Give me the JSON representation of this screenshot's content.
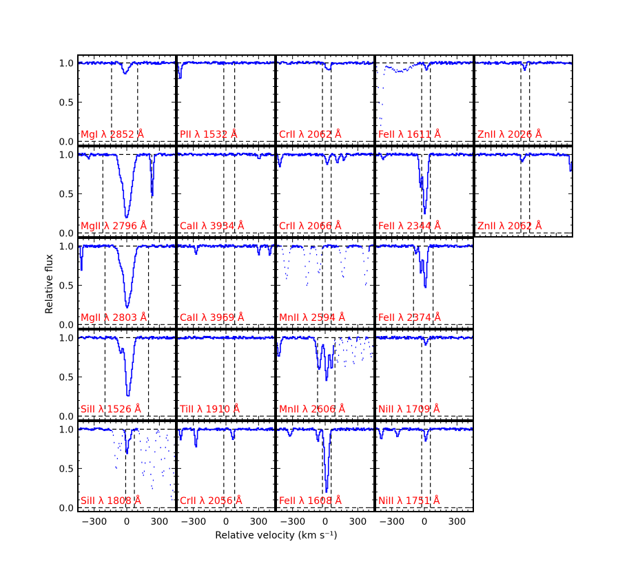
{
  "chart_data": {
    "type": "line",
    "title": "",
    "xlabel": "Relative velocity (km s⁻¹)",
    "ylabel": "Relative flux",
    "xlim": [
      -450,
      450
    ],
    "ylim": [
      -0.05,
      1.1
    ],
    "x_ticks": [
      -300,
      0,
      300
    ],
    "x_tick_labels": [
      "−300",
      "0",
      "300"
    ],
    "y_ticks": [
      0.0,
      0.5,
      1.0
    ],
    "y_tick_labels": [
      "0.0",
      "0.5",
      "1.0"
    ],
    "grid": false,
    "line_color": "#0000ff",
    "label_color": "#ff0000",
    "panels": [
      {
        "label": "MgI λ 2852 Å",
        "row": 0,
        "col": 0,
        "vlines": [
          -140,
          100
        ],
        "features": [
          [
            -10,
            0.12,
            22
          ],
          [
            -35,
            0.05,
            10
          ]
        ],
        "dotted": []
      },
      {
        "label": "PII λ 1532 Å",
        "row": 0,
        "col": 1,
        "vlines": [
          -20,
          80
        ],
        "features": [
          [
            -425,
            0.22,
            9
          ]
        ],
        "dotted": []
      },
      {
        "label": "CrII λ 2062 Å",
        "row": 0,
        "col": 2,
        "vlines": [
          -25,
          55
        ],
        "features": [
          [
            15,
            0.08,
            14
          ],
          [
            40,
            0.06,
            8
          ]
        ],
        "dotted": []
      },
      {
        "label": "FeII λ 1611 Å",
        "row": 0,
        "col": 3,
        "vlines": [
          -25,
          55
        ],
        "features": [
          [
            15,
            0.09,
            12
          ]
        ],
        "dotted": [
          [
            -405,
            0.8,
            16
          ],
          [
            -280,
            0.06,
            60
          ],
          [
            -190,
            0.08,
            70
          ]
        ]
      },
      {
        "label": "ZnII λ 2026 Å",
        "row": 0,
        "col": 4,
        "vlines": [
          -25,
          55
        ],
        "features": [
          [
            5,
            0.08,
            12
          ]
        ],
        "dotted": []
      },
      {
        "label": "MgII λ 2796 Å",
        "row": 1,
        "col": 0,
        "vlines": [
          -220,
          230
        ],
        "features": [
          [
            -10,
            0.7,
            22
          ],
          [
            20,
            0.55,
            30
          ],
          [
            -60,
            0.25,
            18
          ],
          [
            230,
            0.55,
            9
          ],
          [
            -360,
            0.05,
            12
          ]
        ],
        "dotted": []
      },
      {
        "label": "CaII λ 3934 Å",
        "row": 1,
        "col": 1,
        "vlines": [
          -20,
          80
        ],
        "features": [
          [
            300,
            0.05,
            10
          ]
        ],
        "dotted": []
      },
      {
        "label": "CrII λ 2066 Å",
        "row": 1,
        "col": 2,
        "vlines": [
          -25,
          55
        ],
        "features": [
          [
            -420,
            0.15,
            12
          ],
          [
            15,
            0.12,
            14
          ],
          [
            110,
            0.12,
            10
          ],
          [
            170,
            0.07,
            10
          ]
        ],
        "dotted": []
      },
      {
        "label": "FeII λ 2344 Å",
        "row": 1,
        "col": 3,
        "vlines": [
          -25,
          55
        ],
        "features": [
          [
            0,
            0.75,
            14
          ],
          [
            -40,
            0.4,
            10
          ],
          [
            20,
            0.3,
            10
          ],
          [
            -380,
            0.05,
            10
          ]
        ],
        "dotted": []
      },
      {
        "label": "ZnII λ 2062 Å",
        "row": 1,
        "col": 4,
        "vlines": [
          -25,
          55
        ],
        "features": [
          [
            -15,
            0.1,
            12
          ],
          [
            430,
            0.22,
            9
          ]
        ],
        "dotted": []
      },
      {
        "label": "MgII λ 2803 Å",
        "row": 2,
        "col": 0,
        "vlines": [
          -200,
          200
        ],
        "features": [
          [
            -5,
            0.7,
            24
          ],
          [
            30,
            0.5,
            28
          ],
          [
            -60,
            0.2,
            20
          ],
          [
            -420,
            0.3,
            6
          ]
        ],
        "dotted": []
      },
      {
        "label": "CaII λ 3969 Å",
        "row": 2,
        "col": 1,
        "vlines": [
          -20,
          80
        ],
        "features": [
          [
            -280,
            0.1,
            8
          ],
          [
            300,
            0.1,
            8
          ],
          [
            400,
            0.12,
            8
          ]
        ],
        "dotted": []
      },
      {
        "label": "MnII λ 2594 Å",
        "row": 2,
        "col": 2,
        "vlines": [
          -25,
          55
        ],
        "features": [],
        "dotted": [
          [
            -360,
            0.4,
            18
          ],
          [
            -170,
            0.5,
            15
          ],
          [
            -60,
            0.35,
            15
          ],
          [
            160,
            0.4,
            15
          ],
          [
            370,
            0.5,
            13
          ]
        ]
      },
      {
        "label": "FeII λ 2374 Å",
        "row": 2,
        "col": 3,
        "vlines": [
          -100,
          80
        ],
        "features": [
          [
            5,
            0.55,
            12
          ],
          [
            -35,
            0.35,
            10
          ],
          [
            -80,
            0.12,
            8
          ]
        ],
        "dotted": []
      },
      {
        "label": "SiII λ 1526 Å",
        "row": 3,
        "col": 0,
        "vlines": [
          -200,
          200
        ],
        "features": [
          [
            5,
            0.72,
            20
          ],
          [
            35,
            0.4,
            20
          ],
          [
            -60,
            0.2,
            15
          ]
        ],
        "dotted": []
      },
      {
        "label": "TiII λ 1910 Å",
        "row": 3,
        "col": 1,
        "vlines": [
          -20,
          80
        ],
        "features": [],
        "dotted": []
      },
      {
        "label": "MnII λ 2606 Å",
        "row": 3,
        "col": 2,
        "vlines": [
          -70,
          90
        ],
        "features": [
          [
            -430,
            0.25,
            12
          ],
          [
            -60,
            0.4,
            18
          ],
          [
            10,
            0.55,
            14
          ],
          [
            55,
            0.4,
            12
          ]
        ],
        "dotted": [
          [
            110,
            0.3,
            12
          ],
          [
            180,
            0.38,
            12
          ],
          [
            260,
            0.35,
            12
          ],
          [
            340,
            0.28,
            12
          ],
          [
            420,
            0.25,
            12
          ]
        ]
      },
      {
        "label": "NiII λ 1709 Å",
        "row": 3,
        "col": 3,
        "vlines": [
          -25,
          55
        ],
        "features": [
          [
            10,
            0.1,
            10
          ]
        ],
        "dotted": []
      },
      {
        "label": "SiII λ 1808 Å",
        "row": 4,
        "col": 0,
        "vlines": [
          -10,
          70
        ],
        "features": [
          [
            0,
            0.3,
            12
          ],
          [
            30,
            0.12,
            8
          ]
        ],
        "dotted": [
          [
            -100,
            0.5,
            14
          ],
          [
            -60,
            0.25,
            10
          ],
          [
            150,
            0.6,
            18
          ],
          [
            230,
            0.75,
            18
          ],
          [
            330,
            0.6,
            16
          ],
          [
            410,
            0.9,
            18
          ]
        ]
      },
      {
        "label": "CrII λ 2056 Å",
        "row": 4,
        "col": 1,
        "vlines": [
          -20,
          80
        ],
        "features": [
          [
            -420,
            0.12,
            8
          ],
          [
            -280,
            0.25,
            8
          ],
          [
            60,
            0.12,
            10
          ]
        ],
        "dotted": []
      },
      {
        "label": "FeII λ 1608 Å",
        "row": 4,
        "col": 2,
        "vlines": [
          -25,
          55
        ],
        "features": [
          [
            10,
            0.8,
            16
          ],
          [
            -70,
            0.15,
            10
          ],
          [
            -330,
            0.1,
            12
          ]
        ],
        "dotted": []
      },
      {
        "label": "NiII λ 1751 Å",
        "row": 4,
        "col": 3,
        "vlines": [
          -25,
          55
        ],
        "features": [
          [
            -400,
            0.12,
            10
          ],
          [
            -250,
            0.1,
            10
          ],
          [
            10,
            0.15,
            10
          ]
        ],
        "dotted": []
      }
    ]
  }
}
